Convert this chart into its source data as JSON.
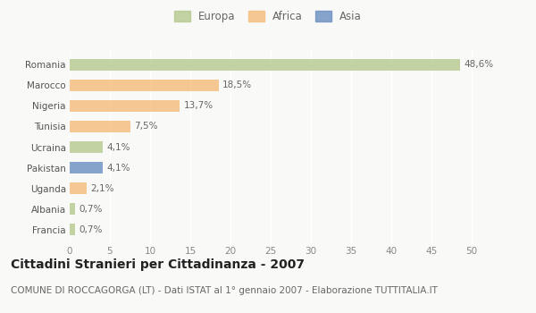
{
  "countries": [
    "Francia",
    "Albania",
    "Uganda",
    "Pakistan",
    "Ucraina",
    "Tunisia",
    "Nigeria",
    "Marocco",
    "Romania"
  ],
  "values": [
    0.7,
    0.7,
    2.1,
    4.1,
    4.1,
    7.5,
    13.7,
    18.5,
    48.6
  ],
  "labels": [
    "0,7%",
    "0,7%",
    "2,1%",
    "4,1%",
    "4,1%",
    "7,5%",
    "13,7%",
    "18,5%",
    "48,6%"
  ],
  "colors": [
    "#b5c98e",
    "#b5c98e",
    "#f5bc7a",
    "#6a8fc0",
    "#b5c98e",
    "#f5bc7a",
    "#f5bc7a",
    "#f5bc7a",
    "#b5c98e"
  ],
  "legend_labels": [
    "Europa",
    "Africa",
    "Asia"
  ],
  "legend_colors": [
    "#b5c98e",
    "#f5bc7a",
    "#6a8fc0"
  ],
  "xlim": [
    0,
    52
  ],
  "xticks": [
    0,
    5,
    10,
    15,
    20,
    25,
    30,
    35,
    40,
    45,
    50
  ],
  "title": "Cittadini Stranieri per Cittadinanza - 2007",
  "subtitle": "COMUNE DI ROCCAGORGA (LT) - Dati ISTAT al 1° gennaio 2007 - Elaborazione TUTTITALIA.IT",
  "bg_color": "#f9f9f7",
  "bar_alpha": 0.8,
  "grid_color": "#ffffff",
  "title_fontsize": 10,
  "subtitle_fontsize": 7.5,
  "label_fontsize": 7.5,
  "tick_fontsize": 7.5,
  "legend_fontsize": 8.5,
  "bar_height": 0.55
}
